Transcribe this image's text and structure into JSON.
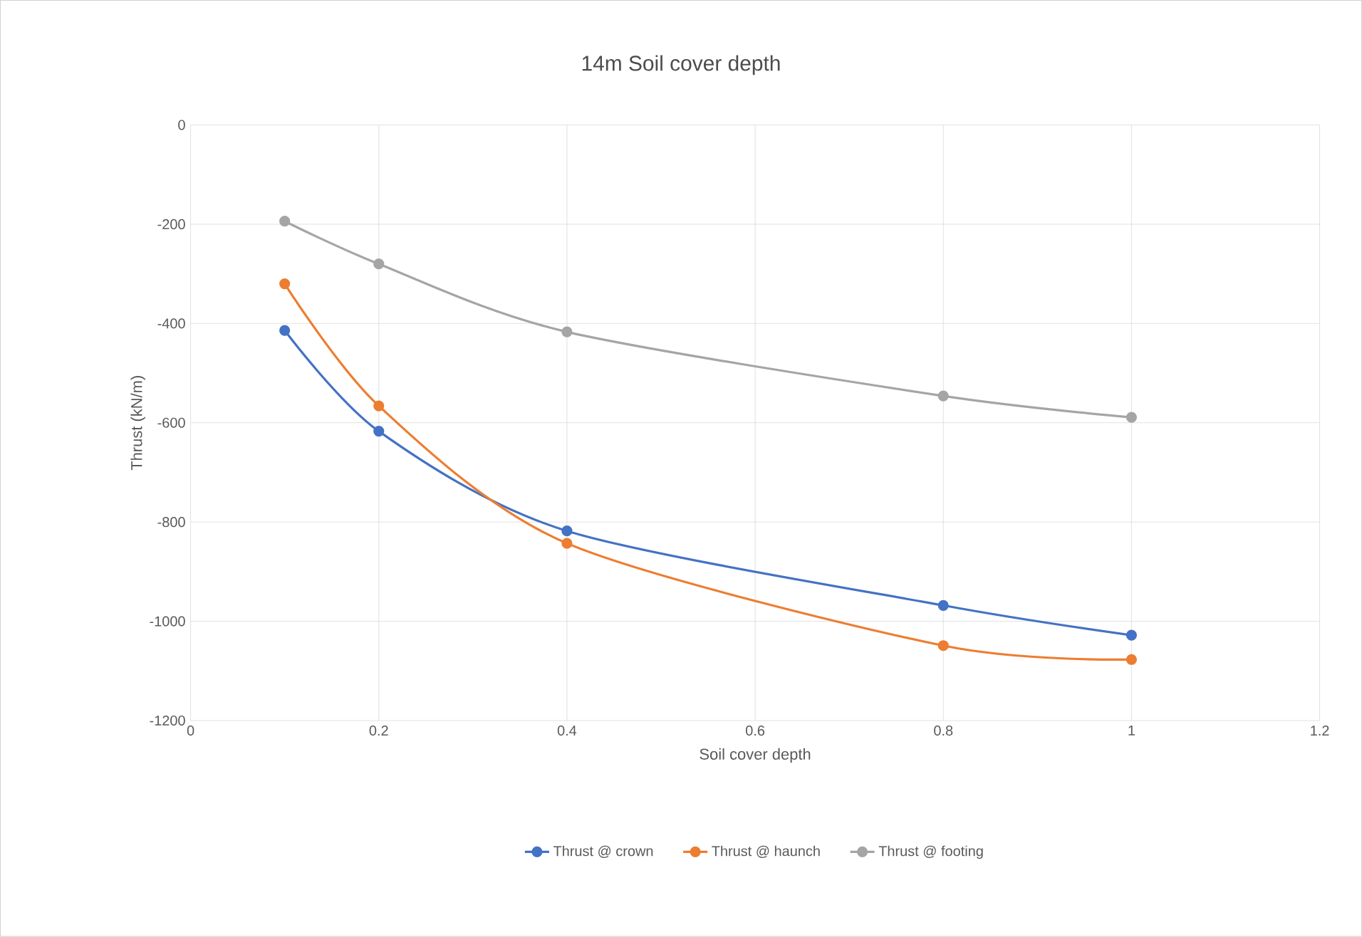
{
  "chart_data": {
    "type": "line",
    "title": "14m Soil cover depth",
    "xlabel": "Soil cover depth",
    "ylabel": "Thrust (kN/m)",
    "x": [
      0.1,
      0.2,
      0.4,
      0.8,
      1
    ],
    "series": [
      {
        "name": "Thrust @ crown",
        "color": "#4472c4",
        "values": [
          -414,
          -617,
          -818,
          -968,
          -1028
        ]
      },
      {
        "name": "Thrust @ haunch",
        "color": "#ed7d31",
        "values": [
          -320,
          -566,
          -843,
          -1049,
          -1077
        ]
      },
      {
        "name": "Thrust @ footing",
        "color": "#a5a5a5",
        "values": [
          -194,
          -280,
          -417,
          -546,
          -589
        ]
      }
    ],
    "xlim": [
      0,
      1.2
    ],
    "ylim": [
      -1200,
      0
    ],
    "xticks": [
      0,
      0.2,
      0.4,
      0.6,
      0.8,
      1,
      1.2
    ],
    "yticks": [
      -1200,
      -1000,
      -800,
      -600,
      -400,
      -200,
      0
    ],
    "grid": true,
    "legend": "bottom",
    "marker": "circle"
  }
}
